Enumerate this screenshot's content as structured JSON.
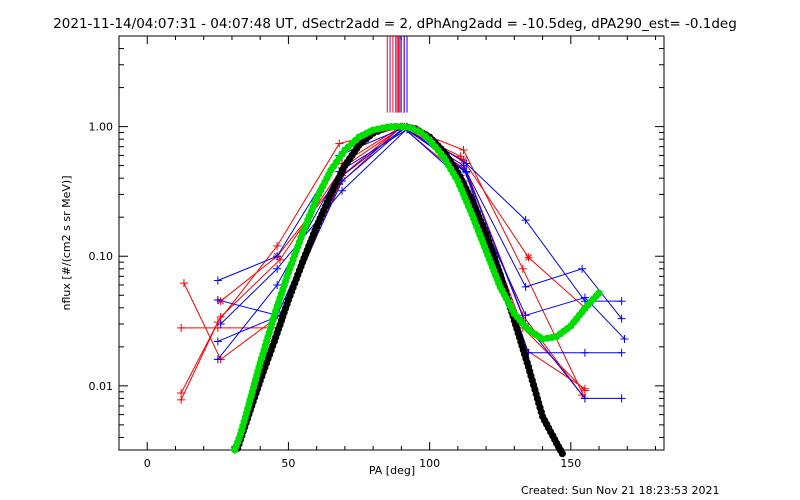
{
  "chart_data": {
    "type": "scatter",
    "title": "2021-11-14/04:07:31 - 04:07:48 UT, dSectr2add = 2, dPhAng2add = -10.5deg, dPA290_est= -0.1deg",
    "xlabel": "PA [deg]",
    "ylabel": "nflux [#/(cm2 s sr MeV)]",
    "xlim": [
      -10,
      183
    ],
    "ylim": [
      0.0032,
      5.0
    ],
    "yscale": "log",
    "xticks": [
      0,
      50,
      100,
      150
    ],
    "xtick_labels": [
      "0",
      "50",
      "100",
      "150"
    ],
    "yticks": [
      0.01,
      0.1,
      1.0
    ],
    "ytick_labels": [
      "0.01",
      "0.10",
      "1.00"
    ],
    "grid": false,
    "footer": "Created: Sun Nov 21 18:23:53 2021",
    "vertical_markers": {
      "red": [
        85,
        87,
        88,
        89,
        90
      ],
      "blue": [
        89.5,
        91,
        92
      ],
      "purple": [
        86,
        88.5,
        91
      ]
    },
    "series": [
      {
        "color": "#ff0000",
        "symbol": "plus",
        "x": [
          12,
          25,
          46,
          68,
          91,
          112,
          133,
          155
        ],
        "y": [
          0.0078,
          0.031,
          0.12,
          0.74,
          1.0,
          0.66,
          0.08,
          0.008
        ]
      },
      {
        "color": "#ff0000",
        "symbol": "plus",
        "x": [
          13,
          26,
          47,
          69,
          90,
          111,
          134,
          155
        ],
        "y": [
          0.062,
          0.016,
          0.035,
          0.52,
          1.0,
          0.42,
          0.019,
          0.0095
        ]
      },
      {
        "color": "#ff0000",
        "symbol": "plus",
        "x": [
          12,
          26,
          47,
          69,
          90,
          111,
          133,
          154
        ],
        "y": [
          0.0088,
          0.034,
          0.094,
          0.48,
          0.98,
          0.59,
          0.035,
          0.0085
        ]
      },
      {
        "color": "#ff0000",
        "symbol": "plus",
        "x": [
          12,
          25,
          46,
          68,
          90,
          112,
          133,
          155
        ],
        "y": [
          0.028,
          0.028,
          0.028,
          0.36,
          1.0,
          0.48,
          0.028,
          0.0092
        ]
      },
      {
        "color": "#ff0000",
        "symbol": "asterisk",
        "x": [
          26,
          46,
          69,
          90,
          112,
          135,
          155
        ],
        "y": [
          0.045,
          0.1,
          0.42,
          1.0,
          0.55,
          0.098,
          0.04
        ]
      },
      {
        "color": "#0000ff",
        "symbol": "plus",
        "x": [
          25,
          46,
          68,
          92,
          113,
          134,
          155,
          168
        ],
        "y": [
          0.065,
          0.1,
          0.6,
          1.0,
          0.52,
          0.19,
          0.045,
          0.045
        ]
      },
      {
        "color": "#0000ff",
        "symbol": "plus",
        "x": [
          25,
          46,
          68,
          92,
          113,
          134,
          154,
          168
        ],
        "y": [
          0.016,
          0.06,
          0.45,
          0.95,
          0.45,
          0.058,
          0.08,
          0.033
        ]
      },
      {
        "color": "#0000ff",
        "symbol": "plus",
        "x": [
          25,
          47,
          69,
          91,
          112,
          134,
          155,
          169
        ],
        "y": [
          0.022,
          0.035,
          0.38,
          0.97,
          0.38,
          0.035,
          0.048,
          0.023
        ]
      },
      {
        "color": "#0000ff",
        "symbol": "plus",
        "x": [
          25,
          46,
          68,
          91,
          112,
          135,
          155,
          168
        ],
        "y": [
          0.046,
          0.035,
          0.4,
          0.98,
          0.5,
          0.018,
          0.018,
          0.018
        ]
      },
      {
        "color": "#0000ff",
        "symbol": "plus",
        "x": [
          26,
          46,
          69,
          92,
          113,
          134,
          155,
          168
        ],
        "y": [
          0.03,
          0.08,
          0.32,
          0.96,
          0.44,
          0.03,
          0.008,
          0.008
        ]
      },
      {
        "color": "#000000",
        "symbol": "dot",
        "x": [
          32,
          35,
          40,
          45,
          50,
          55,
          60,
          65,
          70,
          75,
          80,
          85,
          88,
          90,
          92,
          95,
          100,
          105,
          110,
          115,
          120,
          125,
          130,
          135,
          140,
          145,
          147
        ],
        "y": [
          0.0033,
          0.0052,
          0.011,
          0.022,
          0.046,
          0.09,
          0.17,
          0.3,
          0.5,
          0.72,
          0.89,
          0.99,
          1.0,
          1.0,
          0.99,
          0.96,
          0.83,
          0.64,
          0.44,
          0.27,
          0.15,
          0.072,
          0.032,
          0.014,
          0.0058,
          0.0036,
          0.003
        ]
      },
      {
        "color": "#00dd00",
        "symbol": "dot",
        "x": [
          31,
          33,
          36,
          40,
          45,
          50,
          55,
          60,
          65,
          70,
          75,
          80,
          85,
          88,
          90,
          93,
          97,
          100,
          105,
          110,
          115,
          120,
          125,
          130,
          135,
          140,
          145,
          150,
          153,
          156,
          160
        ],
        "y": [
          0.0032,
          0.0042,
          0.0072,
          0.015,
          0.035,
          0.075,
          0.15,
          0.28,
          0.46,
          0.66,
          0.83,
          0.94,
          0.99,
          1.0,
          1.0,
          0.98,
          0.9,
          0.79,
          0.58,
          0.38,
          0.21,
          0.11,
          0.058,
          0.036,
          0.027,
          0.023,
          0.024,
          0.029,
          0.035,
          0.042,
          0.052
        ]
      }
    ]
  }
}
